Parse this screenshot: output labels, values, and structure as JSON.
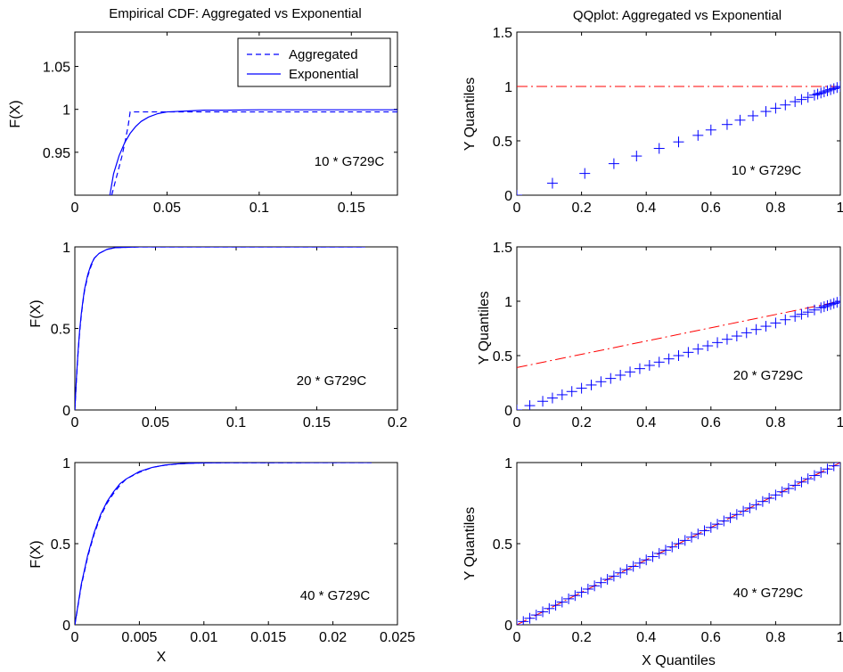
{
  "chart_data": [
    {
      "id": "cdf10",
      "type": "line",
      "title": "Empirical CDF: Aggregated vs Exponential",
      "xlabel": "",
      "ylabel": "F(X)",
      "xlim": [
        0,
        0.175
      ],
      "ylim": [
        0.9,
        1.09
      ],
      "xticks": [
        0,
        0.05,
        0.1,
        0.15
      ],
      "xtick_labels": [
        "0",
        "0.05",
        "0.1",
        "0.15"
      ],
      "yticks": [
        0.95,
        1,
        1.05
      ],
      "ytick_labels": [
        "0.95",
        "1",
        "1.05"
      ],
      "annotation": "10 * G729C",
      "legend": [
        "Aggregated",
        "Exponential"
      ],
      "legend_position": "top-right",
      "series": [
        {
          "name": "Aggregated",
          "style": "dashed",
          "color": "#0000ff",
          "x": [
            0.02,
            0.0255,
            0.0275,
            0.029,
            0.03,
            0.175
          ],
          "y": [
            0.9,
            0.945,
            0.965,
            0.982,
            0.997,
            0.997
          ]
        },
        {
          "name": "Exponential",
          "style": "solid",
          "color": "#0000ff",
          "x": [
            0.019,
            0.021,
            0.024,
            0.027,
            0.03,
            0.033,
            0.036,
            0.04,
            0.045,
            0.05,
            0.06,
            0.07,
            0.08,
            0.1,
            0.12,
            0.15,
            0.175
          ],
          "y": [
            0.9,
            0.925,
            0.946,
            0.961,
            0.972,
            0.98,
            0.986,
            0.991,
            0.995,
            0.997,
            0.998,
            0.999,
            0.999,
            0.9995,
            0.9995,
            0.9995,
            0.9995
          ]
        }
      ]
    },
    {
      "id": "qq10",
      "type": "scatter",
      "title": "QQplot: Aggregated vs Exponential",
      "xlabel": "",
      "ylabel": "Y Quantiles",
      "xlim": [
        0,
        1
      ],
      "ylim": [
        0,
        1.5
      ],
      "xticks": [
        0,
        0.2,
        0.4,
        0.6,
        0.8,
        1
      ],
      "xtick_labels": [
        "0",
        "0.2",
        "0.4",
        "0.6",
        "0.8",
        "1"
      ],
      "yticks": [
        0,
        0.5,
        1,
        1.5
      ],
      "ytick_labels": [
        "0",
        "0.5",
        "1",
        "1.5"
      ],
      "annotation": "10 * G729C",
      "ref_line": {
        "x": [
          0,
          1
        ],
        "y": [
          1,
          1
        ],
        "color": "#ff0000",
        "style": "dashdot"
      },
      "points": {
        "color": "#0000ff",
        "x": [
          0,
          0.11,
          0.21,
          0.3,
          0.37,
          0.44,
          0.5,
          0.56,
          0.6,
          0.65,
          0.69,
          0.73,
          0.77,
          0.8,
          0.83,
          0.86,
          0.88,
          0.9,
          0.92,
          0.93,
          0.94,
          0.95,
          0.96,
          0.97,
          0.98,
          0.99,
          1.0
        ],
        "y": [
          0,
          0.11,
          0.2,
          0.29,
          0.36,
          0.43,
          0.49,
          0.55,
          0.6,
          0.65,
          0.69,
          0.73,
          0.77,
          0.8,
          0.83,
          0.86,
          0.88,
          0.9,
          0.92,
          0.93,
          0.94,
          0.95,
          0.96,
          0.97,
          0.98,
          0.99,
          1.0
        ]
      }
    },
    {
      "id": "cdf20",
      "type": "line",
      "title": "",
      "xlabel": "",
      "ylabel": "F(X)",
      "xlim": [
        0,
        0.2
      ],
      "ylim": [
        0,
        1
      ],
      "xticks": [
        0,
        0.05,
        0.1,
        0.15,
        0.2
      ],
      "xtick_labels": [
        "0",
        "0.05",
        "0.1",
        "0.15",
        "0.2"
      ],
      "yticks": [
        0,
        0.5,
        1
      ],
      "ytick_labels": [
        "0",
        "0.5",
        "1"
      ],
      "annotation": "20 * G729C",
      "series": [
        {
          "name": "",
          "style": "solid",
          "color": "#0000ff",
          "x": [
            0,
            0.001,
            0.002,
            0.003,
            0.004,
            0.005,
            0.006,
            0.008,
            0.01,
            0.012,
            0.015,
            0.02,
            0.025,
            0.04,
            0.18
          ],
          "y": [
            0,
            0.2,
            0.36,
            0.49,
            0.59,
            0.67,
            0.74,
            0.83,
            0.89,
            0.93,
            0.96,
            0.985,
            0.995,
            1.0,
            1.0
          ]
        },
        {
          "name": "",
          "style": "dashed",
          "color": "#0000ff",
          "x": [
            0,
            0.001,
            0.002,
            0.003,
            0.004,
            0.005,
            0.006,
            0.008,
            0.01,
            0.012,
            0.015,
            0.02,
            0.025,
            0.04,
            0.18
          ],
          "y": [
            0,
            0.19,
            0.35,
            0.48,
            0.58,
            0.66,
            0.73,
            0.82,
            0.88,
            0.93,
            0.96,
            0.985,
            0.995,
            1.0,
            1.0
          ]
        }
      ]
    },
    {
      "id": "qq20",
      "type": "scatter",
      "title": "",
      "xlabel": "",
      "ylabel": "Y Quantiles",
      "xlim": [
        0,
        1
      ],
      "ylim": [
        0,
        1.5
      ],
      "xticks": [
        0,
        0.2,
        0.4,
        0.6,
        0.8,
        1
      ],
      "xtick_labels": [
        "0",
        "0.2",
        "0.4",
        "0.6",
        "0.8",
        "1"
      ],
      "yticks": [
        0,
        0.5,
        1,
        1.5
      ],
      "ytick_labels": [
        "0",
        "0.5",
        "1",
        "1.5"
      ],
      "annotation": "20 * G729C",
      "ref_line": {
        "x": [
          0,
          1
        ],
        "y": [
          0.39,
          1.0
        ],
        "color": "#ff0000",
        "style": "dashdot"
      },
      "points": {
        "color": "#0000ff",
        "x": [
          0,
          0.04,
          0.08,
          0.11,
          0.14,
          0.17,
          0.2,
          0.23,
          0.26,
          0.29,
          0.32,
          0.35,
          0.38,
          0.41,
          0.44,
          0.47,
          0.5,
          0.53,
          0.56,
          0.59,
          0.62,
          0.65,
          0.68,
          0.71,
          0.74,
          0.77,
          0.8,
          0.83,
          0.86,
          0.88,
          0.9,
          0.92,
          0.94,
          0.95,
          0.96,
          0.97,
          0.98,
          0.99,
          1.0
        ],
        "y": [
          0,
          0.04,
          0.08,
          0.11,
          0.14,
          0.17,
          0.2,
          0.23,
          0.26,
          0.29,
          0.32,
          0.35,
          0.38,
          0.41,
          0.44,
          0.47,
          0.5,
          0.53,
          0.56,
          0.59,
          0.62,
          0.65,
          0.68,
          0.71,
          0.74,
          0.77,
          0.8,
          0.83,
          0.86,
          0.88,
          0.9,
          0.92,
          0.94,
          0.95,
          0.96,
          0.97,
          0.98,
          0.99,
          1.0
        ]
      }
    },
    {
      "id": "cdf40",
      "type": "line",
      "title": "",
      "xlabel": "X",
      "ylabel": "F(X)",
      "xlim": [
        0,
        0.025
      ],
      "ylim": [
        0,
        1
      ],
      "xticks": [
        0,
        0.005,
        0.01,
        0.015,
        0.02,
        0.025
      ],
      "xtick_labels": [
        "0",
        "0.005",
        "0.01",
        "0.015",
        "0.02",
        "0.025"
      ],
      "yticks": [
        0,
        0.5,
        1
      ],
      "ytick_labels": [
        "0",
        "0.5",
        "1"
      ],
      "annotation": "40 * G729C",
      "series": [
        {
          "name": "",
          "style": "solid",
          "color": "#0000ff",
          "x": [
            0,
            0.0005,
            0.001,
            0.0015,
            0.002,
            0.0025,
            0.003,
            0.0035,
            0.004,
            0.005,
            0.006,
            0.007,
            0.008,
            0.009,
            0.01,
            0.012,
            0.023
          ],
          "y": [
            0,
            0.25,
            0.43,
            0.57,
            0.68,
            0.76,
            0.82,
            0.87,
            0.9,
            0.945,
            0.97,
            0.985,
            0.992,
            0.996,
            0.998,
            0.999,
            1.0
          ]
        },
        {
          "name": "",
          "style": "dashed",
          "color": "#0000ff",
          "x": [
            0,
            0.0005,
            0.001,
            0.0015,
            0.002,
            0.0025,
            0.003,
            0.0035,
            0.004,
            0.005,
            0.006,
            0.007,
            0.008,
            0.009,
            0.01,
            0.012,
            0.023
          ],
          "y": [
            0,
            0.24,
            0.42,
            0.56,
            0.67,
            0.75,
            0.81,
            0.86,
            0.9,
            0.94,
            0.97,
            0.984,
            0.992,
            0.996,
            0.998,
            0.999,
            1.0
          ]
        }
      ]
    },
    {
      "id": "qq40",
      "type": "scatter",
      "title": "",
      "xlabel": "X Quantiles",
      "ylabel": "Y Quantiles",
      "xlim": [
        0,
        1
      ],
      "ylim": [
        0,
        1
      ],
      "xticks": [
        0,
        0.2,
        0.4,
        0.6,
        0.8,
        1
      ],
      "xtick_labels": [
        "0",
        "0.2",
        "0.4",
        "0.6",
        "0.8",
        "1"
      ],
      "yticks": [
        0,
        0.5,
        1
      ],
      "ytick_labels": [
        "0",
        "0.5",
        "1"
      ],
      "annotation": "40 * G729C",
      "ref_line": {
        "x": [
          0,
          1
        ],
        "y": [
          0,
          1.0
        ],
        "color": "#ff0000",
        "style": "dashdot"
      },
      "points": {
        "color": "#0000ff",
        "x": [
          0,
          0.02,
          0.04,
          0.06,
          0.08,
          0.1,
          0.12,
          0.14,
          0.16,
          0.18,
          0.2,
          0.22,
          0.24,
          0.26,
          0.28,
          0.3,
          0.32,
          0.34,
          0.36,
          0.38,
          0.4,
          0.42,
          0.44,
          0.46,
          0.48,
          0.5,
          0.52,
          0.54,
          0.56,
          0.58,
          0.6,
          0.62,
          0.64,
          0.66,
          0.68,
          0.7,
          0.72,
          0.74,
          0.76,
          0.78,
          0.8,
          0.82,
          0.84,
          0.86,
          0.88,
          0.9,
          0.92,
          0.94,
          0.96,
          0.98,
          1.0
        ],
        "y": [
          0,
          0.02,
          0.04,
          0.06,
          0.08,
          0.1,
          0.12,
          0.14,
          0.16,
          0.18,
          0.2,
          0.22,
          0.24,
          0.26,
          0.28,
          0.3,
          0.32,
          0.34,
          0.36,
          0.38,
          0.4,
          0.42,
          0.44,
          0.46,
          0.48,
          0.5,
          0.52,
          0.54,
          0.56,
          0.58,
          0.6,
          0.62,
          0.64,
          0.66,
          0.68,
          0.7,
          0.72,
          0.74,
          0.76,
          0.78,
          0.8,
          0.82,
          0.84,
          0.86,
          0.88,
          0.9,
          0.92,
          0.94,
          0.96,
          0.98,
          1.0
        ]
      }
    }
  ]
}
